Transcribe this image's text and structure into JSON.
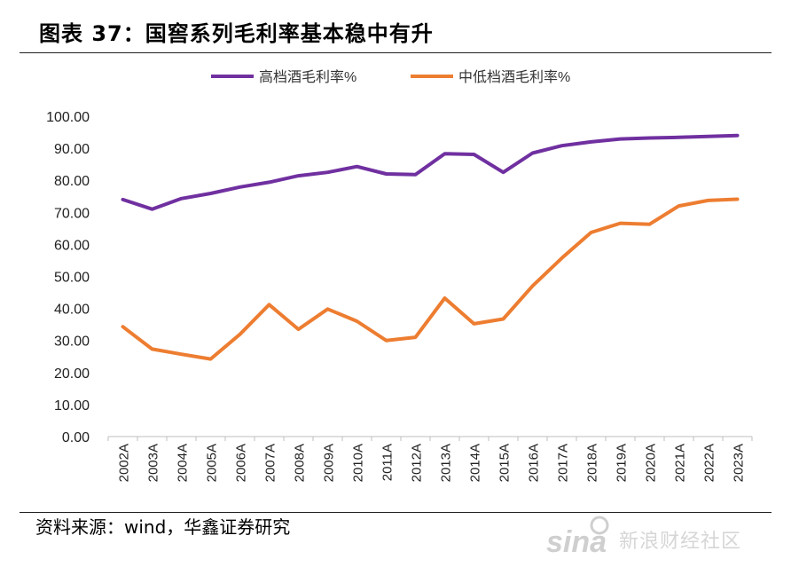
{
  "header": {
    "title": "图表 37：国窖系列毛利率基本稳中有升"
  },
  "footer": {
    "source": "资料来源：wind，华鑫证券研究"
  },
  "watermark": {
    "logo": "sina",
    "text": "新浪财经社区"
  },
  "chart_data": {
    "type": "line",
    "title": "",
    "xlabel": "",
    "ylabel": "",
    "ylim": [
      0,
      100
    ],
    "yticks": [
      "0.00",
      "10.00",
      "20.00",
      "30.00",
      "40.00",
      "50.00",
      "60.00",
      "70.00",
      "80.00",
      "90.00",
      "100.00"
    ],
    "categories": [
      "2002A",
      "2003A",
      "2004A",
      "2005A",
      "2006A",
      "2007A",
      "2008A",
      "2009A",
      "2010A",
      "2011A",
      "2012A",
      "2013A",
      "2014A",
      "2015A",
      "2016A",
      "2017A",
      "2018A",
      "2019A",
      "2020A",
      "2021A",
      "2022A",
      "2023A"
    ],
    "legend_position": "top",
    "grid": false,
    "series": [
      {
        "name": "高档酒毛利率%",
        "color": "#7030a0",
        "values": [
          74.0,
          71.0,
          74.3,
          75.9,
          77.9,
          79.4,
          81.4,
          82.5,
          84.3,
          82.0,
          81.8,
          88.3,
          88.1,
          82.5,
          88.5,
          90.8,
          92.0,
          92.9,
          93.2,
          93.4,
          93.7,
          94.0
        ]
      },
      {
        "name": "中低档酒毛利率%",
        "color": "#ed7d31",
        "values": [
          34.3,
          27.3,
          25.7,
          24.2,
          31.9,
          41.2,
          33.5,
          39.8,
          36.0,
          30.0,
          31.0,
          43.2,
          35.2,
          36.7,
          47.0,
          55.7,
          63.7,
          66.6,
          66.3,
          72.0,
          73.7,
          74.1
        ]
      }
    ]
  }
}
